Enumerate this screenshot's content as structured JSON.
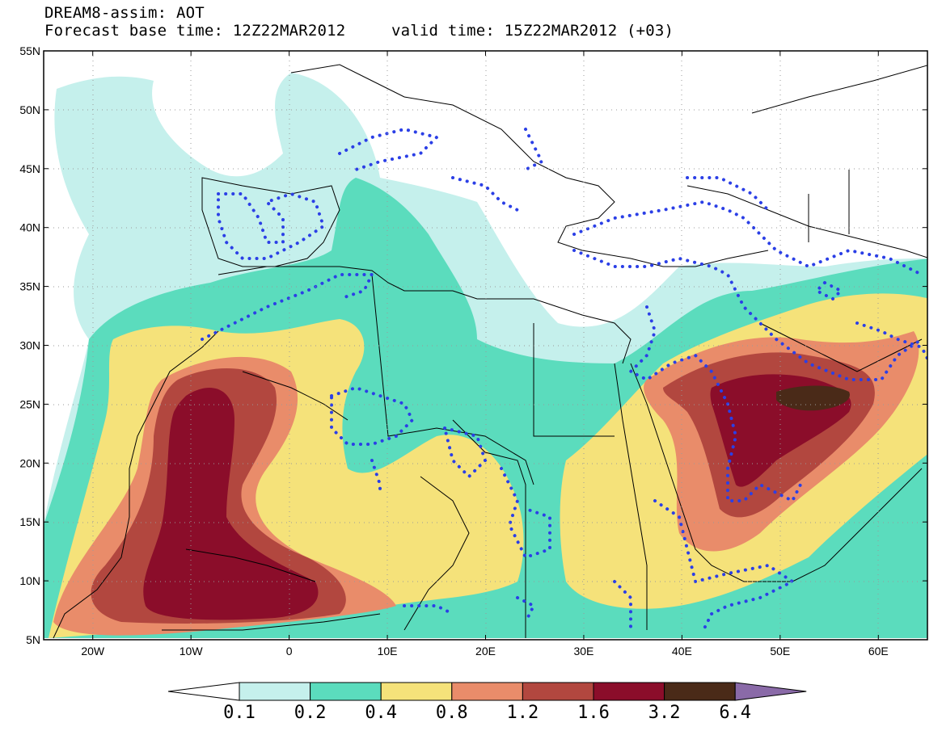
{
  "title": {
    "line1": "DREAM8-assim: AOT",
    "base_time": "Forecast base time: 12Z22MAR2012",
    "valid_time": "valid time: 15Z22MAR2012 (+03)"
  },
  "map": {
    "lon_range": [
      -25,
      65
    ],
    "lat_range": [
      5,
      55
    ],
    "lat_ticks": [
      {
        "value": 55,
        "label": "55N"
      },
      {
        "value": 50,
        "label": "50N"
      },
      {
        "value": 45,
        "label": "45N"
      },
      {
        "value": 40,
        "label": "40N"
      },
      {
        "value": 35,
        "label": "35N"
      },
      {
        "value": 30,
        "label": "30N"
      },
      {
        "value": 25,
        "label": "25N"
      },
      {
        "value": 20,
        "label": "20N"
      },
      {
        "value": 15,
        "label": "15N"
      },
      {
        "value": 10,
        "label": "10N"
      },
      {
        "value": 5,
        "label": "5N"
      }
    ],
    "lon_ticks": [
      {
        "value": -20,
        "label": "20W"
      },
      {
        "value": -10,
        "label": "10W"
      },
      {
        "value": 0,
        "label": "0"
      },
      {
        "value": 10,
        "label": "10E"
      },
      {
        "value": 20,
        "label": "20E"
      },
      {
        "value": 30,
        "label": "30E"
      },
      {
        "value": 40,
        "label": "40E"
      },
      {
        "value": 50,
        "label": "50E"
      },
      {
        "value": 60,
        "label": "60E"
      }
    ],
    "grid": "dotted"
  },
  "colorbar": {
    "levels": [
      "0.1",
      "0.2",
      "0.4",
      "0.8",
      "1.2",
      "1.6",
      "3.2",
      "6.4"
    ],
    "colors": [
      "#ffffff",
      "#c5f0ec",
      "#5bdcbd",
      "#f5e27a",
      "#e98c6a",
      "#b2473f",
      "#8b0d2a",
      "#4a2a18",
      "#8a6aa8"
    ]
  },
  "overlay_color": "#2b3fe6"
}
